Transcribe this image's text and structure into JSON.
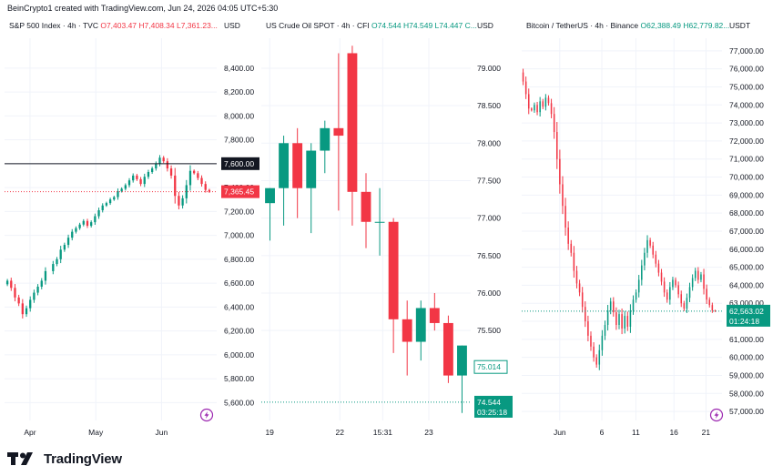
{
  "credit": "BeinCrypto1 created with TradingView.com, Jun 24, 2026 04:05 UTC+5:30",
  "footer": {
    "brand": "TradingView"
  },
  "colors": {
    "up": "#089981",
    "down": "#f23645",
    "grid": "#f0f3fa",
    "axis_text": "#131722"
  },
  "chart_data": [
    {
      "id": "spx",
      "type": "candlestick",
      "header": {
        "symbol": "S&P 500 Index · 4h · TVC",
        "ohlc": [
          {
            "label": "O",
            "value": "7,403.47"
          },
          {
            "label": "H",
            "value": "7,408.34"
          },
          {
            "label": "L",
            "value": "7,361.23..."
          }
        ]
      },
      "currency": "USD",
      "ylim": [
        5450,
        8650
      ],
      "y_ticks": [
        "5,600.00",
        "5,800.00",
        "6,000.00",
        "6,200.00",
        "6,400.00",
        "6,600.00",
        "6,800.00",
        "7,000.00",
        "7,200.00",
        "7,400.00",
        "7,600.00",
        "7,800.00",
        "8,000.00",
        "8,200.00",
        "8,400.00"
      ],
      "x_ticks": [
        {
          "label": "Apr",
          "x": 0.12
        },
        {
          "label": "May",
          "x": 0.43
        },
        {
          "label": "Jun",
          "x": 0.74
        }
      ],
      "series": [
        6590,
        6620,
        6560,
        6480,
        6430,
        6340,
        6390,
        6460,
        6520,
        6570,
        6620,
        6700,
        6760,
        6800,
        6880,
        6920,
        6980,
        7030,
        7060,
        7090,
        7120,
        7080,
        7110,
        7160,
        7210,
        7250,
        7270,
        7300,
        7320,
        7370,
        7390,
        7420,
        7460,
        7500,
        7470,
        7430,
        7490,
        7530,
        7560,
        7600,
        7650,
        7620,
        7560,
        7500,
        7330,
        7250,
        7310,
        7420,
        7540,
        7520,
        7480,
        7430,
        7380,
        7365
      ],
      "gap_after_index": 10,
      "reference_line": {
        "value": 7600,
        "label": "7,600.00"
      },
      "last_price": {
        "value": 7365.45,
        "label": "7,365.45"
      }
    },
    {
      "id": "oil",
      "type": "candlestick",
      "header": {
        "symbol": "US Crude Oil SPOT · 4h · CFI",
        "ohlc": [
          {
            "label": "O",
            "value": "74.544"
          },
          {
            "label": "H",
            "value": "74.549"
          },
          {
            "label": "L",
            "value": "74.447"
          },
          {
            "label": "",
            "value": "C..."
          }
        ]
      },
      "currency": "USD",
      "ylim": [
        74.3,
        79.4
      ],
      "y_ticks": [
        "75.500",
        "76.000",
        "76.500",
        "77.000",
        "77.500",
        "78.000",
        "78.500",
        "79.000"
      ],
      "x_ticks": [
        {
          "label": "19",
          "x": 0.04
        },
        {
          "label": "22",
          "x": 0.375
        },
        {
          "label": "15:31",
          "x": 0.58
        },
        {
          "label": "23",
          "x": 0.8
        }
      ],
      "candles": [
        {
          "o": 77.2,
          "h": 77.4,
          "l": 76.7,
          "c": 77.4
        },
        {
          "o": 77.4,
          "h": 78.1,
          "l": 76.9,
          "c": 78.0
        },
        {
          "o": 78.0,
          "h": 78.2,
          "l": 77.0,
          "c": 77.4
        },
        {
          "o": 77.4,
          "h": 78.0,
          "l": 76.8,
          "c": 77.9
        },
        {
          "o": 77.9,
          "h": 78.3,
          "l": 77.6,
          "c": 78.2
        },
        {
          "o": 78.2,
          "h": 79.2,
          "l": 77.1,
          "c": 78.1
        },
        {
          "o": 79.2,
          "h": 79.3,
          "l": 76.9,
          "c": 77.35
        },
        {
          "o": 77.35,
          "h": 77.6,
          "l": 76.6,
          "c": 76.95
        },
        {
          "o": 76.95,
          "h": 77.4,
          "l": 76.5,
          "c": 76.95
        },
        {
          "o": 76.95,
          "h": 77.0,
          "l": 75.2,
          "c": 75.65
        },
        {
          "o": 75.65,
          "h": 75.9,
          "l": 74.9,
          "c": 75.35
        },
        {
          "o": 75.35,
          "h": 75.9,
          "l": 75.1,
          "c": 75.8
        },
        {
          "o": 75.8,
          "h": 76.0,
          "l": 75.5,
          "c": 75.6
        },
        {
          "o": 75.6,
          "h": 75.7,
          "l": 74.8,
          "c": 74.9
        },
        {
          "o": 74.9,
          "h": 75.3,
          "l": 74.4,
          "c": 75.3
        }
      ],
      "price_labels": [
        {
          "value": 75.014,
          "label": "75.014"
        }
      ],
      "last_price": {
        "value": 74.544,
        "label": "74.544",
        "countdown": "03:25:18"
      }
    },
    {
      "id": "btc",
      "type": "candlestick",
      "header": {
        "symbol": "Bitcoin / TetherUS · 4h · Binance",
        "ohlc": [
          {
            "label": "O",
            "value": "62,388.49"
          },
          {
            "label": "H",
            "value": "62,779.82..."
          }
        ]
      },
      "currency": "USDT",
      "ylim": [
        56500,
        77700
      ],
      "y_ticks": [
        "57,000.00",
        "58,000.00",
        "59,000.00",
        "60,000.00",
        "61,000.00",
        "62,000.00",
        "63,000.00",
        "64,000.00",
        "65,000.00",
        "66,000.00",
        "67,000.00",
        "68,000.00",
        "69,000.00",
        "70,000.00",
        "71,000.00",
        "72,000.00",
        "73,000.00",
        "74,000.00",
        "75,000.00",
        "76,000.00",
        "77,000.00"
      ],
      "x_ticks": [
        {
          "label": "Jun",
          "x": 0.19
        },
        {
          "label": "6",
          "x": 0.4
        },
        {
          "label": "11",
          "x": 0.57
        },
        {
          "label": "16",
          "x": 0.76
        },
        {
          "label": "21",
          "x": 0.92
        }
      ],
      "series": [
        75800,
        75300,
        74600,
        73800,
        73700,
        74000,
        73600,
        74200,
        73900,
        74400,
        74100,
        73500,
        72500,
        71000,
        69600,
        68400,
        67200,
        66300,
        65800,
        64800,
        64100,
        63600,
        62800,
        62000,
        61200,
        60600,
        60000,
        59600,
        60400,
        61200,
        61800,
        62600,
        63100,
        62500,
        61800,
        62400,
        61600,
        62300,
        61700,
        62600,
        63200,
        63600,
        64300,
        65100,
        65800,
        66500,
        66200,
        65700,
        65200,
        64700,
        64200,
        63600,
        63200,
        63900,
        64300,
        64000,
        63500,
        63000,
        62700,
        63300,
        63900,
        64400,
        64800,
        64300,
        64600,
        63800,
        63200,
        62900,
        62600,
        62560
      ],
      "last_price": {
        "value": 62563.02,
        "label": "62,563.02",
        "countdown": "01:24:18"
      }
    }
  ]
}
